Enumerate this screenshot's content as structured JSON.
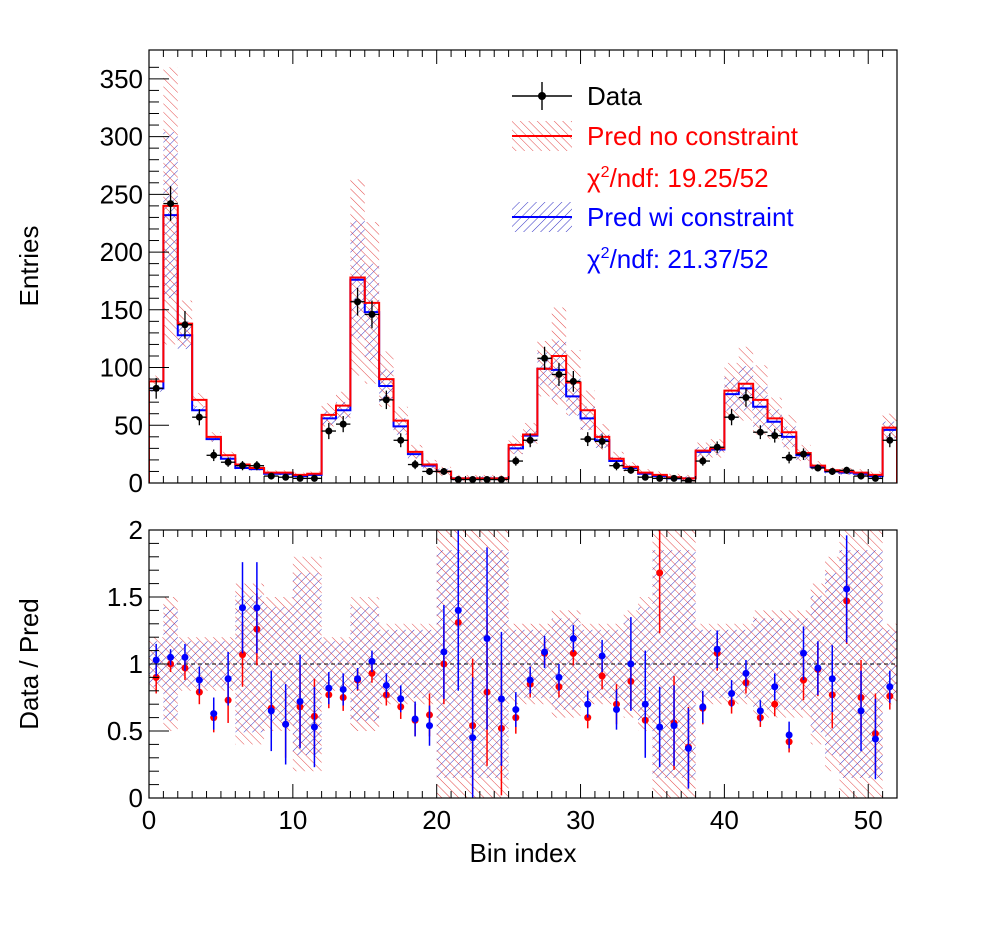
{
  "colors": {
    "data": "#000000",
    "pred_no_constraint": "#ff0000",
    "pred_wi_constraint": "#0000ff"
  },
  "legend": {
    "data_label": "Data",
    "nc_label": "Pred no constraint",
    "nc_chi2_prefix": "χ",
    "nc_chi2_sup": "2",
    "nc_chi2_suffix": "/ndf: 19.25/52",
    "wc_label": "Pred wi constraint",
    "wc_chi2_prefix": "χ",
    "wc_chi2_sup": "2",
    "wc_chi2_suffix": "/ndf: 21.37/52",
    "position": "top-right"
  },
  "chart_data": [
    {
      "type": "histogram",
      "panel": "top",
      "ylabel": "Entries",
      "xlabel": "",
      "xlim": [
        0,
        52
      ],
      "ylim": [
        0,
        375
      ],
      "yticks": [
        "0",
        "50",
        "100",
        "150",
        "200",
        "250",
        "300",
        "350"
      ],
      "series": [
        {
          "name": "Data",
          "values": [
            82,
            242,
            137,
            57,
            24,
            18,
            15,
            15,
            6,
            5,
            4,
            4,
            45,
            51,
            157,
            146,
            72,
            37,
            16,
            10,
            10,
            3,
            3,
            3,
            3,
            19,
            37,
            108,
            94,
            88,
            38,
            36,
            15,
            11,
            5,
            4,
            4,
            2,
            19,
            31,
            57,
            74,
            44,
            41,
            22,
            25,
            13,
            10,
            11,
            6,
            4,
            37
          ]
        },
        {
          "name": "Pred no constraint",
          "values": [
            88,
            240,
            138,
            72,
            40,
            24,
            16,
            13,
            9,
            9,
            7,
            8,
            59,
            67,
            178,
            156,
            90,
            54,
            27,
            16,
            10,
            4,
            4,
            4,
            4,
            33,
            42,
            99,
            110,
            87,
            63,
            40,
            21,
            14,
            9,
            7,
            5,
            4,
            28,
            30,
            80,
            86,
            72,
            56,
            44,
            26,
            15,
            11,
            10,
            9,
            7,
            48
          ]
        },
        {
          "name": "Pred wi constraint",
          "values": [
            82,
            232,
            128,
            63,
            38,
            21,
            13,
            12,
            8,
            8,
            6,
            7,
            56,
            63,
            176,
            148,
            84,
            49,
            25,
            15,
            10,
            4,
            4,
            4,
            4,
            30,
            41,
            99,
            98,
            75,
            56,
            37,
            19,
            13,
            8,
            6,
            4,
            4,
            27,
            29,
            77,
            82,
            66,
            53,
            40,
            24,
            14,
            10,
            9,
            8,
            6,
            46
          ]
        }
      ],
      "band_no_constraint_halfwidth": [
        5,
        120,
        20,
        6,
        4,
        3,
        2,
        2,
        2,
        2,
        2,
        2,
        10,
        12,
        85,
        70,
        24,
        12,
        6,
        4,
        4,
        3,
        3,
        3,
        3,
        8,
        10,
        24,
        42,
        28,
        17,
        11,
        6,
        4,
        3,
        3,
        3,
        3,
        7,
        8,
        24,
        32,
        30,
        18,
        15,
        7,
        4,
        3,
        3,
        3,
        3,
        12
      ],
      "data_errors": [
        9,
        15,
        12,
        7,
        5,
        4,
        4,
        4,
        2,
        2,
        2,
        2,
        7,
        7,
        12,
        12,
        8,
        6,
        4,
        3,
        3,
        2,
        2,
        2,
        2,
        4,
        6,
        10,
        10,
        9,
        6,
        6,
        4,
        3,
        2,
        2,
        2,
        1,
        4,
        5,
        7,
        8,
        6,
        6,
        5,
        5,
        3,
        3,
        3,
        2,
        2,
        6
      ]
    },
    {
      "type": "scatter",
      "panel": "bottom",
      "ylabel": "Data / Pred",
      "xlabel": "Bin index",
      "xlim": [
        0,
        52
      ],
      "ylim": [
        0,
        2
      ],
      "xticks": [
        "0",
        "10",
        "20",
        "30",
        "40",
        "50"
      ],
      "yticks": [
        "0",
        "0.5",
        "1",
        "1.5",
        "2"
      ],
      "reference_line": 1,
      "series": [
        {
          "name": "Pred no constraint",
          "values": [
            0.9,
            1.0,
            0.97,
            0.79,
            0.6,
            0.73,
            1.07,
            1.26,
            0.67,
            0.55,
            0.68,
            0.61,
            0.77,
            0.75,
            0.88,
            0.93,
            0.77,
            0.68,
            0.58,
            0.62,
            1.0,
            1.31,
            0.54,
            0.79,
            0.52,
            0.6,
            0.85,
            1.08,
            0.83,
            1.08,
            0.6,
            0.91,
            0.7,
            0.87,
            0.58,
            1.68,
            0.56,
            0.38,
            0.67,
            1.08,
            0.71,
            0.86,
            0.6,
            0.7,
            0.42,
            0.88,
            0.96,
            0.77,
            1.47,
            0.75,
            0.48,
            0.76
          ],
          "errors": [
            0.12,
            0.06,
            0.09,
            0.09,
            0.11,
            0.17,
            0.24,
            0.27,
            0.22,
            0.25,
            0.3,
            0.28,
            0.1,
            0.1,
            0.08,
            0.07,
            0.08,
            0.09,
            0.12,
            0.16,
            0.3,
            0.45,
            0.5,
            0.55,
            0.5,
            0.12,
            0.1,
            0.1,
            0.08,
            0.09,
            0.08,
            0.1,
            0.15,
            0.2,
            0.25,
            0.45,
            0.35,
            0.3,
            0.12,
            0.13,
            0.08,
            0.08,
            0.07,
            0.09,
            0.08,
            0.15,
            0.2,
            0.25,
            0.32,
            0.28,
            0.3,
            0.1
          ]
        },
        {
          "name": "Pred wi constraint",
          "values": [
            1.03,
            1.05,
            1.05,
            0.88,
            0.63,
            0.89,
            1.42,
            1.42,
            0.65,
            0.55,
            0.72,
            0.53,
            0.82,
            0.81,
            0.89,
            1.02,
            0.84,
            0.74,
            0.59,
            0.54,
            1.09,
            1.4,
            0.45,
            1.19,
            0.74,
            0.66,
            0.88,
            1.09,
            0.9,
            1.19,
            0.7,
            1.06,
            0.66,
            1.0,
            0.7,
            0.53,
            0.54,
            0.37,
            0.68,
            1.11,
            0.78,
            0.93,
            0.65,
            0.83,
            0.47,
            1.08,
            0.97,
            0.89,
            1.56,
            0.65,
            0.44,
            0.83
          ],
          "errors": [
            0.12,
            0.06,
            0.1,
            0.1,
            0.12,
            0.2,
            0.34,
            0.34,
            0.3,
            0.3,
            0.35,
            0.3,
            0.12,
            0.12,
            0.08,
            0.08,
            0.09,
            0.1,
            0.13,
            0.15,
            0.35,
            0.6,
            0.45,
            0.68,
            0.5,
            0.13,
            0.1,
            0.12,
            0.1,
            0.1,
            0.1,
            0.12,
            0.15,
            0.35,
            0.4,
            0.3,
            0.3,
            0.3,
            0.12,
            0.14,
            0.1,
            0.1,
            0.08,
            0.1,
            0.1,
            0.2,
            0.2,
            0.25,
            0.4,
            0.3,
            0.3,
            0.12
          ]
        }
      ],
      "band_halfwidth": [
        0.2,
        0.5,
        0.2,
        0.2,
        0.2,
        0.2,
        0.6,
        0.6,
        0.5,
        0.5,
        0.8,
        0.8,
        0.2,
        0.2,
        0.5,
        0.5,
        0.3,
        0.3,
        0.3,
        0.3,
        1.0,
        1.0,
        1.0,
        1.0,
        1.0,
        0.3,
        0.3,
        0.3,
        0.4,
        0.4,
        0.3,
        0.3,
        0.3,
        0.4,
        0.5,
        1.0,
        1.0,
        1.0,
        0.3,
        0.3,
        0.3,
        0.3,
        0.4,
        0.4,
        0.4,
        0.4,
        0.6,
        0.8,
        1.0,
        1.0,
        1.0,
        0.3
      ]
    }
  ]
}
